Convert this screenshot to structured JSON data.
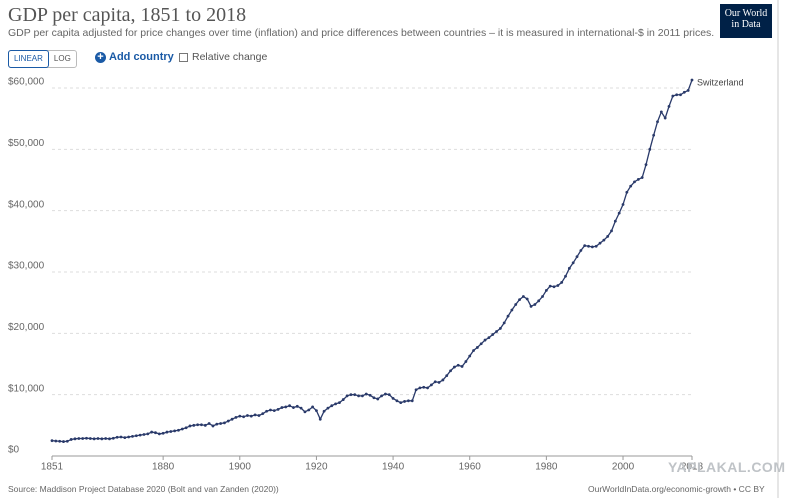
{
  "chart_data": {
    "type": "line",
    "title": "GDP per capita, 1851 to 2018",
    "subtitle": "GDP per capita adjusted for price changes over time (inflation) and price differences between countries – it is measured in international-$ in 2011 prices.",
    "source": "Source: Maddison Project Database 2020 (Bolt and van Zanden (2020))",
    "url": "OurWorldInData.org/economic-growth • CC BY",
    "x": [
      1851,
      1852,
      1853,
      1854,
      1855,
      1856,
      1857,
      1858,
      1859,
      1860,
      1861,
      1862,
      1863,
      1864,
      1865,
      1866,
      1867,
      1868,
      1869,
      1870,
      1871,
      1872,
      1873,
      1874,
      1875,
      1876,
      1877,
      1878,
      1879,
      1880,
      1881,
      1882,
      1883,
      1884,
      1885,
      1886,
      1887,
      1888,
      1889,
      1890,
      1891,
      1892,
      1893,
      1894,
      1895,
      1896,
      1897,
      1898,
      1899,
      1900,
      1901,
      1902,
      1903,
      1904,
      1905,
      1906,
      1907,
      1908,
      1909,
      1910,
      1911,
      1912,
      1913,
      1914,
      1915,
      1916,
      1917,
      1918,
      1919,
      1920,
      1921,
      1922,
      1923,
      1924,
      1925,
      1926,
      1927,
      1928,
      1929,
      1930,
      1931,
      1932,
      1933,
      1934,
      1935,
      1936,
      1937,
      1938,
      1939,
      1940,
      1941,
      1942,
      1943,
      1944,
      1945,
      1946,
      1947,
      1948,
      1949,
      1950,
      1951,
      1952,
      1953,
      1954,
      1955,
      1956,
      1957,
      1958,
      1959,
      1960,
      1961,
      1962,
      1963,
      1964,
      1965,
      1966,
      1967,
      1968,
      1969,
      1970,
      1971,
      1972,
      1973,
      1974,
      1975,
      1976,
      1977,
      1978,
      1979,
      1980,
      1981,
      1982,
      1983,
      1984,
      1985,
      1986,
      1987,
      1988,
      1989,
      1990,
      1991,
      1992,
      1993,
      1994,
      1995,
      1996,
      1997,
      1998,
      1999,
      2000,
      2001,
      2002,
      2003,
      2004,
      2005,
      2006,
      2007,
      2008,
      2009,
      2010,
      2011,
      2012,
      2013,
      2014,
      2015,
      2016,
      2017,
      2018
    ],
    "series": [
      {
        "name": "Switzerland",
        "color": "#2a3a6a",
        "values": [
          2500,
          2450,
          2400,
          2350,
          2400,
          2700,
          2800,
          2850,
          2850,
          2900,
          2850,
          2800,
          2850,
          2800,
          2850,
          2800,
          2900,
          3050,
          3100,
          3000,
          3100,
          3200,
          3300,
          3400,
          3500,
          3600,
          3900,
          3800,
          3600,
          3700,
          3900,
          4000,
          4100,
          4200,
          4400,
          4600,
          4900,
          5000,
          5100,
          5100,
          5000,
          5300,
          4900,
          5200,
          5300,
          5400,
          5700,
          6000,
          6300,
          6500,
          6400,
          6600,
          6500,
          6700,
          6600,
          6900,
          7300,
          7500,
          7400,
          7600,
          7900,
          8000,
          8200,
          7900,
          8100,
          7800,
          7200,
          7500,
          8000,
          7400,
          6000,
          7300,
          7800,
          8200,
          8500,
          8700,
          9200,
          9800,
          10000,
          10000,
          9800,
          9800,
          10100,
          9900,
          9500,
          9300,
          9800,
          10100,
          10000,
          9400,
          9000,
          8700,
          8900,
          9000,
          9000,
          10800,
          11100,
          11200,
          11100,
          11600,
          12100,
          12000,
          12400,
          13100,
          13900,
          14500,
          14800,
          14600,
          15400,
          16300,
          17200,
          17700,
          18300,
          18900,
          19300,
          19800,
          20300,
          20800,
          21700,
          22800,
          23800,
          24700,
          25500,
          26000,
          25600,
          24400,
          24700,
          25300,
          26000,
          27000,
          27700,
          27600,
          27800,
          28300,
          29300,
          30600,
          31500,
          32500,
          33500,
          34300,
          34200,
          34100,
          34200,
          34700,
          35200,
          35800,
          36700,
          38300,
          39600,
          41000,
          43000,
          44000,
          44700,
          45100,
          45400,
          47500,
          50000,
          52300,
          54500,
          56100,
          55100,
          57000,
          58700,
          58900,
          58900,
          59300,
          59600,
          61300
        ]
      }
    ],
    "xlim": [
      1851,
      2018
    ],
    "ylim": [
      0,
      61500
    ],
    "xticks": [
      1851,
      1880,
      1900,
      1920,
      1940,
      1960,
      1980,
      2000,
      2018
    ],
    "yticks": [
      {
        "value": 0,
        "label": "$0"
      },
      {
        "value": 10000,
        "label": "$10,000"
      },
      {
        "value": 20000,
        "label": "$20,000"
      },
      {
        "value": 30000,
        "label": "$30,000"
      },
      {
        "value": 40000,
        "label": "$40,000"
      },
      {
        "value": 50000,
        "label": "$50,000"
      },
      {
        "value": 60000,
        "label": "$60,000"
      }
    ],
    "grid": true
  },
  "controls": {
    "linear": "LINEAR",
    "log": "LOG",
    "add_country": "Add country",
    "relative_change": "Relative change"
  },
  "logo": "Our World in Data",
  "watermark": "YAPLAKAL.COM"
}
